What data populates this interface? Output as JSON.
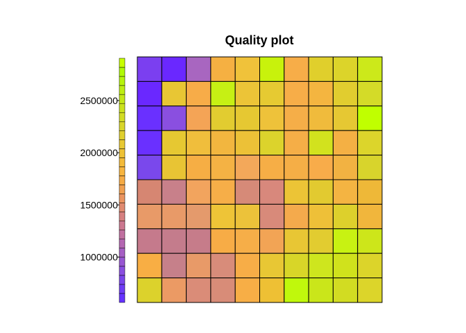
{
  "chart_data": {
    "type": "heatmap",
    "title": "Quality plot",
    "xlabel": "",
    "ylabel": "",
    "n_cols": 10,
    "n_rows": 10,
    "grid": true,
    "yticks": [
      {
        "value": 1000000,
        "label": "1000000"
      },
      {
        "value": 1500000,
        "label": "1500000"
      },
      {
        "value": 2000000,
        "label": "2000000"
      },
      {
        "value": 2500000,
        "label": "2500000"
      }
    ],
    "ylim": [
      565000,
      2905000
    ],
    "colorbar": {
      "position": "left",
      "colors": [
        "#6633ff",
        "#6e3cf5",
        "#7a45eb",
        "#8a4fe0",
        "#9857d2",
        "#a65fc4",
        "#b467b2",
        "#c070a0",
        "#cc7890",
        "#d68080",
        "#e08a70",
        "#ea9460",
        "#f0a050",
        "#f5ab45",
        "#f7b540",
        "#f3bb3a",
        "#eec236",
        "#e8c934",
        "#e0d02f",
        "#d9d62a",
        "#d2dc24",
        "#cbe21d",
        "#c4e817",
        "#bdee12",
        "#b6f40c",
        "#b0fa06",
        "#c8ff00"
      ]
    },
    "cells": [
      [
        "#7b3ff0",
        "#6a28ff",
        "#a866c0",
        "#f5b042",
        "#f0c23a",
        "#c8f20c",
        "#f7ad48",
        "#e0cf2c",
        "#dcd42a",
        "#cce91a"
      ],
      [
        "#6a28ff",
        "#e8c634",
        "#f7ac48",
        "#c6f014",
        "#ecc437",
        "#e6ca32",
        "#f7ad48",
        "#f4b540",
        "#e1cd2f",
        "#d4db28"
      ],
      [
        "#6a30ff",
        "#8a4fe0",
        "#f4a456",
        "#e2cc30",
        "#e6c832",
        "#eec23a",
        "#f5ae48",
        "#f0bb3c",
        "#e6c833",
        "#c0ff00"
      ],
      [
        "#6a30ff",
        "#e6c832",
        "#f0be3c",
        "#f2b63f",
        "#ecc137",
        "#dcd32c",
        "#f5ae47",
        "#d2e21e",
        "#f4b044",
        "#dcd52b"
      ],
      [
        "#7a48ec",
        "#e8c434",
        "#f6ae44",
        "#f4b244",
        "#f3a85a",
        "#f6ae46",
        "#f5ae46",
        "#f8ac4a",
        "#f2b242",
        "#d8d42c"
      ],
      [
        "#d68672",
        "#c8808a",
        "#f2a45e",
        "#f6ae48",
        "#d68a78",
        "#d8887c",
        "#ecc436",
        "#e2ca30",
        "#f4b442",
        "#eeb838"
      ],
      [
        "#e89a68",
        "#e89a68",
        "#e49a6c",
        "#eec437",
        "#ecc23a",
        "#d88a7a",
        "#f4aa4c",
        "#eec038",
        "#ddd02c",
        "#f1b63c"
      ],
      [
        "#c57a8c",
        "#c47c8c",
        "#c67c8a",
        "#f7ac46",
        "#f6ae48",
        "#f2a455",
        "#e8c634",
        "#e2cc30",
        "#c8f212",
        "#cde61a"
      ],
      [
        "#f8ae44",
        "#c6808a",
        "#e89a68",
        "#d88c7a",
        "#f7ad47",
        "#e8c734",
        "#d8d628",
        "#cee61e",
        "#d0e21c",
        "#dcd42a"
      ],
      [
        "#dcd22c",
        "#eb9a64",
        "#da8c78",
        "#d88c78",
        "#f7ae46",
        "#eec034",
        "#c0f80c",
        "#cae61a",
        "#d2dc22",
        "#dcd52a"
      ]
    ]
  }
}
